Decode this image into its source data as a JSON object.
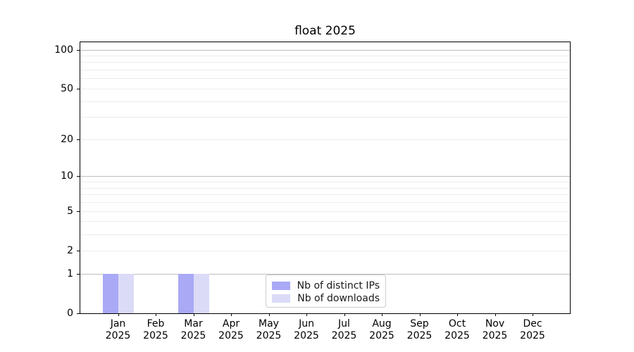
{
  "chart_data": {
    "type": "bar",
    "title": "float 2025",
    "x": {
      "categories": [
        "Jan",
        "Feb",
        "Mar",
        "Apr",
        "May",
        "Jun",
        "Jul",
        "Aug",
        "Sep",
        "Oct",
        "Nov",
        "Dec"
      ],
      "year_line": "2025"
    },
    "y": {
      "scale": "log1p",
      "ylim": [
        0,
        114
      ],
      "ticks": [
        0,
        1,
        2,
        5,
        10,
        20,
        50,
        100
      ],
      "major_gridlines": [
        1,
        10,
        100
      ],
      "minor_gridlines": [
        2,
        3,
        4,
        5,
        6,
        7,
        8,
        9,
        20,
        30,
        40,
        50,
        60,
        70,
        80,
        90
      ],
      "grid": true
    },
    "series": [
      {
        "name": "Nb of distinct IPs",
        "color": "#a9a9f5",
        "values": [
          1,
          0,
          1,
          0,
          0,
          0,
          0,
          0,
          0,
          0,
          0,
          0
        ]
      },
      {
        "name": "Nb of downloads",
        "color": "#dbdbf8",
        "values": [
          1,
          0,
          1,
          0,
          0,
          0,
          0,
          0,
          0,
          0,
          0,
          0
        ]
      }
    ],
    "legend": {
      "location": "lower center"
    }
  },
  "colors": {
    "background": "#ffffff",
    "spine": "#000000",
    "major_grid": "#bdbdbd",
    "minor_grid": "#ededed",
    "legend_border": "#cccccc"
  }
}
